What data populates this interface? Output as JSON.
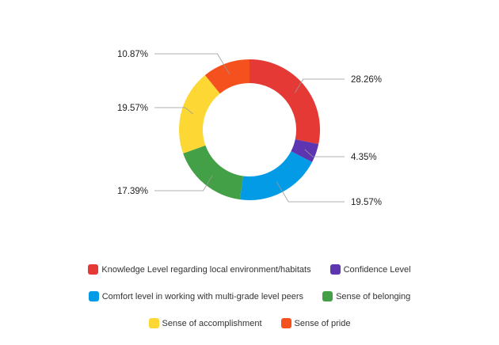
{
  "chart_data": {
    "type": "pie",
    "donut": true,
    "categories": [
      "Knowledge Level regarding local environment/habitats",
      "Confidence Level",
      "Comfort level in working with multi-grade level peers",
      "Sense of belonging",
      "Sense of accomplishment",
      "Sense of pride"
    ],
    "values": [
      28.26,
      4.35,
      19.57,
      17.39,
      19.57,
      10.87
    ],
    "data_labels": [
      "28.26%",
      "4.35%",
      "19.57%",
      "17.39%",
      "19.57%",
      "10.87%"
    ],
    "colors": [
      "#e53935",
      "#5e35b1",
      "#039be5",
      "#43a047",
      "#fdd835",
      "#f4511e"
    ],
    "legend_position": "bottom"
  }
}
